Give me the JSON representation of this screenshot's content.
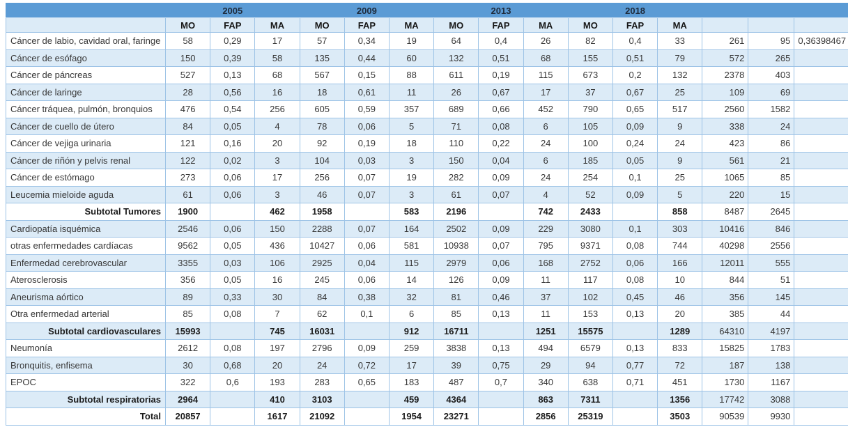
{
  "colors": {
    "header_blue": "#5b9bd5",
    "band_blue": "#dcebf7",
    "grid_blue": "#9dc3e6"
  },
  "table": {
    "year_groups": [
      "2005",
      "2009",
      "2013",
      "2018"
    ],
    "measure_headers": [
      "MO",
      "FAP",
      "MA"
    ],
    "rows": [
      {
        "label": "Cáncer de labio, cavidad oral, faringe",
        "type": "data",
        "values": [
          "58",
          "0,29",
          "17",
          "57",
          "0,34",
          "19",
          "64",
          "0,4",
          "26",
          "82",
          "0,4",
          "33",
          "261",
          "95",
          "0,36398467"
        ]
      },
      {
        "label": "Cáncer de esófago",
        "type": "data",
        "values": [
          "150",
          "0,39",
          "58",
          "135",
          "0,44",
          "60",
          "132",
          "0,51",
          "68",
          "155",
          "0,51",
          "79",
          "572",
          "265",
          ""
        ]
      },
      {
        "label": "Cáncer de páncreas",
        "type": "data",
        "values": [
          "527",
          "0,13",
          "68",
          "567",
          "0,15",
          "88",
          "611",
          "0,19",
          "115",
          "673",
          "0,2",
          "132",
          "2378",
          "403",
          ""
        ]
      },
      {
        "label": "Cáncer de laringe",
        "type": "data",
        "values": [
          "28",
          "0,56",
          "16",
          "18",
          "0,61",
          "11",
          "26",
          "0,67",
          "17",
          "37",
          "0,67",
          "25",
          "109",
          "69",
          ""
        ]
      },
      {
        "label": "Cáncer tráquea, pulmón, bronquios",
        "type": "data",
        "values": [
          "476",
          "0,54",
          "256",
          "605",
          "0,59",
          "357",
          "689",
          "0,66",
          "452",
          "790",
          "0,65",
          "517",
          "2560",
          "1582",
          ""
        ]
      },
      {
        "label": "Cáncer de cuello de útero",
        "type": "data",
        "values": [
          "84",
          "0,05",
          "4",
          "78",
          "0,06",
          "5",
          "71",
          "0,08",
          "6",
          "105",
          "0,09",
          "9",
          "338",
          "24",
          ""
        ]
      },
      {
        "label": "Cáncer de vejiga urinaria",
        "type": "data",
        "values": [
          "121",
          "0,16",
          "20",
          "92",
          "0,19",
          "18",
          "110",
          "0,22",
          "24",
          "100",
          "0,24",
          "24",
          "423",
          "86",
          ""
        ]
      },
      {
        "label": "Cáncer de riñón y pelvis renal",
        "type": "data",
        "values": [
          "122",
          "0,02",
          "3",
          "104",
          "0,03",
          "3",
          "150",
          "0,04",
          "6",
          "185",
          "0,05",
          "9",
          "561",
          "21",
          ""
        ]
      },
      {
        "label": "Cáncer de estómago",
        "type": "data",
        "values": [
          "273",
          "0,06",
          "17",
          "256",
          "0,07",
          "19",
          "282",
          "0,09",
          "24",
          "254",
          "0,1",
          "25",
          "1065",
          "85",
          ""
        ]
      },
      {
        "label": "Leucemia mieloide aguda",
        "type": "data",
        "values": [
          "61",
          "0,06",
          "3",
          "46",
          "0,07",
          "3",
          "61",
          "0,07",
          "4",
          "52",
          "0,09",
          "5",
          "220",
          "15",
          ""
        ]
      },
      {
        "label": "Subtotal Tumores",
        "type": "subtotal",
        "values": [
          "1900",
          "",
          "462",
          "1958",
          "",
          "583",
          "2196",
          "",
          "742",
          "2433",
          "",
          "858",
          "8487",
          "2645",
          ""
        ]
      },
      {
        "label": "Cardiopatía isquémica",
        "type": "data",
        "values": [
          "2546",
          "0,06",
          "150",
          "2288",
          "0,07",
          "164",
          "2502",
          "0,09",
          "229",
          "3080",
          "0,1",
          "303",
          "10416",
          "846",
          ""
        ]
      },
      {
        "label": "otras enfermedades cardíacas",
        "type": "data",
        "values": [
          "9562",
          "0,05",
          "436",
          "10427",
          "0,06",
          "581",
          "10938",
          "0,07",
          "795",
          "9371",
          "0,08",
          "744",
          "40298",
          "2556",
          ""
        ]
      },
      {
        "label": "Enfermedad cerebrovascular",
        "type": "data",
        "values": [
          "3355",
          "0,03",
          "106",
          "2925",
          "0,04",
          "115",
          "2979",
          "0,06",
          "168",
          "2752",
          "0,06",
          "166",
          "12011",
          "555",
          ""
        ]
      },
      {
        "label": "Aterosclerosis",
        "type": "data",
        "values": [
          "356",
          "0,05",
          "16",
          "245",
          "0,06",
          "14",
          "126",
          "0,09",
          "11",
          "117",
          "0,08",
          "10",
          "844",
          "51",
          ""
        ]
      },
      {
        "label": "Aneurisma aórtico",
        "type": "data",
        "values": [
          "89",
          "0,33",
          "30",
          "84",
          "0,38",
          "32",
          "81",
          "0,46",
          "37",
          "102",
          "0,45",
          "46",
          "356",
          "145",
          ""
        ]
      },
      {
        "label": "Otra enfermedad arterial",
        "type": "data",
        "values": [
          "85",
          "0,08",
          "7",
          "62",
          "0,1",
          "6",
          "85",
          "0,13",
          "11",
          "153",
          "0,13",
          "20",
          "385",
          "44",
          ""
        ]
      },
      {
        "label": "Subtotal cardiovasculares",
        "type": "subtotal",
        "values": [
          "15993",
          "",
          "745",
          "16031",
          "",
          "912",
          "16711",
          "",
          "1251",
          "15575",
          "",
          "1289",
          "64310",
          "4197",
          ""
        ]
      },
      {
        "label": "Neumonía",
        "type": "data",
        "values": [
          "2612",
          "0,08",
          "197",
          "2796",
          "0,09",
          "259",
          "3838",
          "0,13",
          "494",
          "6579",
          "0,13",
          "833",
          "15825",
          "1783",
          ""
        ]
      },
      {
        "label": "Bronquitis, enfisema",
        "type": "data",
        "values": [
          "30",
          "0,68",
          "20",
          "24",
          "0,72",
          "17",
          "39",
          "0,75",
          "29",
          "94",
          "0,77",
          "72",
          "187",
          "138",
          ""
        ]
      },
      {
        "label": "EPOC",
        "type": "data",
        "values": [
          "322",
          "0,6",
          "193",
          "283",
          "0,65",
          "183",
          "487",
          "0,7",
          "340",
          "638",
          "0,71",
          "451",
          "1730",
          "1167",
          ""
        ]
      },
      {
        "label": "Subtotal respiratorias",
        "type": "subtotal",
        "values": [
          "2964",
          "",
          "410",
          "3103",
          "",
          "459",
          "4364",
          "",
          "863",
          "7311",
          "",
          "1356",
          "17742",
          "3088",
          ""
        ]
      },
      {
        "label": "Total",
        "type": "total",
        "values": [
          "20857",
          "",
          "1617",
          "21092",
          "",
          "1954",
          "23271",
          "",
          "2856",
          "25319",
          "",
          "3503",
          "90539",
          "9930",
          ""
        ]
      }
    ]
  }
}
